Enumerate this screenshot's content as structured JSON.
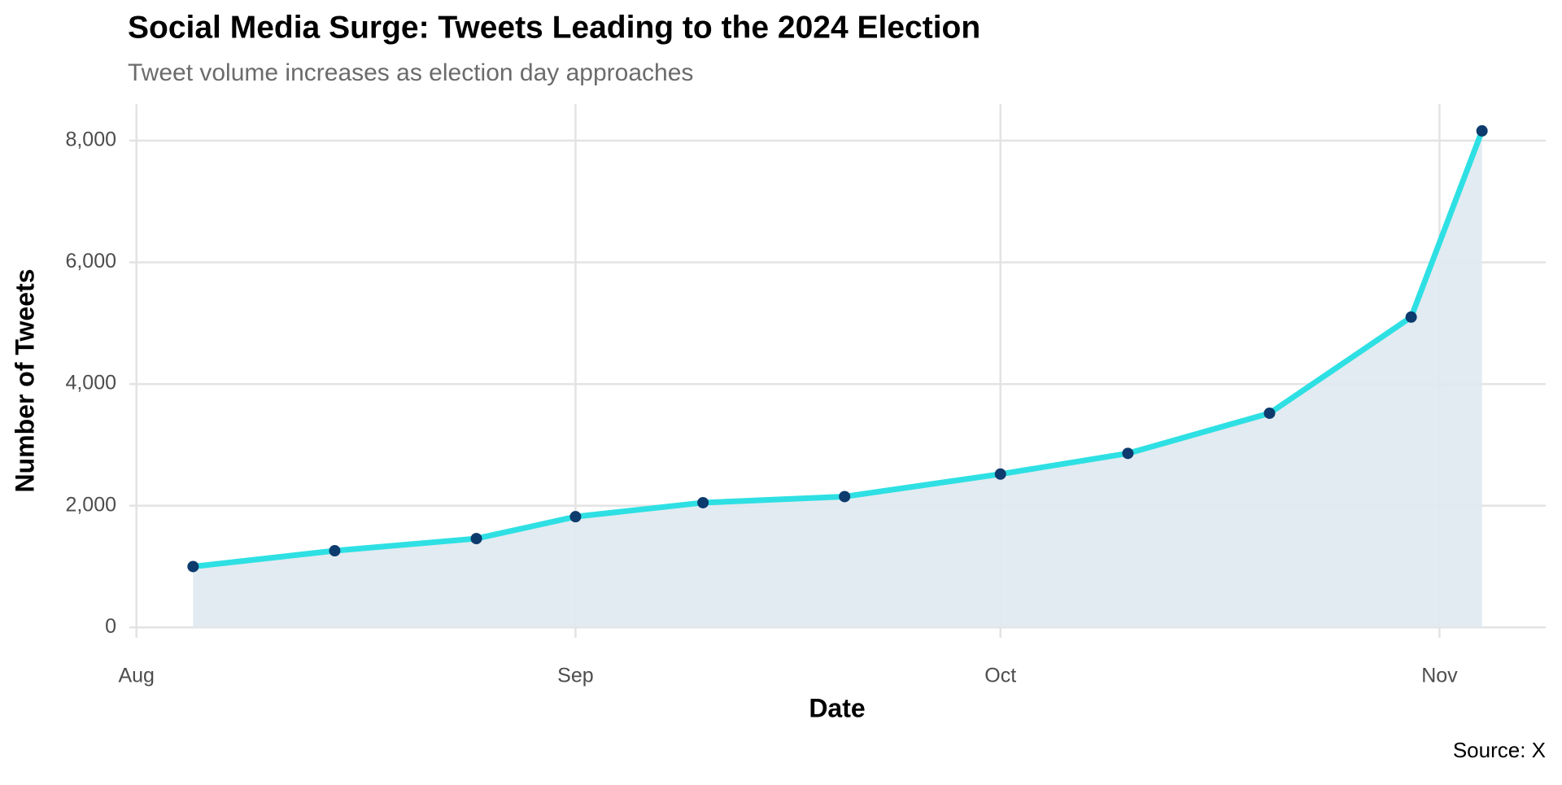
{
  "chart_data": {
    "type": "line",
    "title": "Social Media Surge: Tweets Leading to the 2024 Election",
    "subtitle": "Tweet volume increases as election day approaches",
    "x_label": "Date",
    "y_label": "Number of Tweets",
    "caption": "Source: X",
    "x": [
      4,
      14,
      24,
      31,
      40,
      50,
      61,
      70,
      80,
      90,
      95
    ],
    "series": [
      {
        "name": "Tweets",
        "color": "#2ee0e3",
        "point_color": "#0d3b6e",
        "area_color": "#dfe9f0",
        "values": [
          1000,
          1260,
          1460,
          1820,
          2050,
          2150,
          2520,
          2860,
          3520,
          5100,
          8160
        ]
      }
    ],
    "xlim": [
      -0.5,
      99.5
    ],
    "xticks": [
      {
        "value": 0,
        "label": "Aug"
      },
      {
        "value": 31,
        "label": "Sep"
      },
      {
        "value": 61,
        "label": "Oct"
      },
      {
        "value": 92,
        "label": "Nov"
      }
    ],
    "ylim": [
      -170,
      8600
    ],
    "yticks": [
      0,
      {
        "value": 2000,
        "label": "2,000"
      },
      {
        "value": 4000,
        "label": "4,000"
      },
      {
        "value": 6000,
        "label": "6,000"
      },
      {
        "value": 8000,
        "label": "8,000"
      }
    ],
    "grid": true
  }
}
